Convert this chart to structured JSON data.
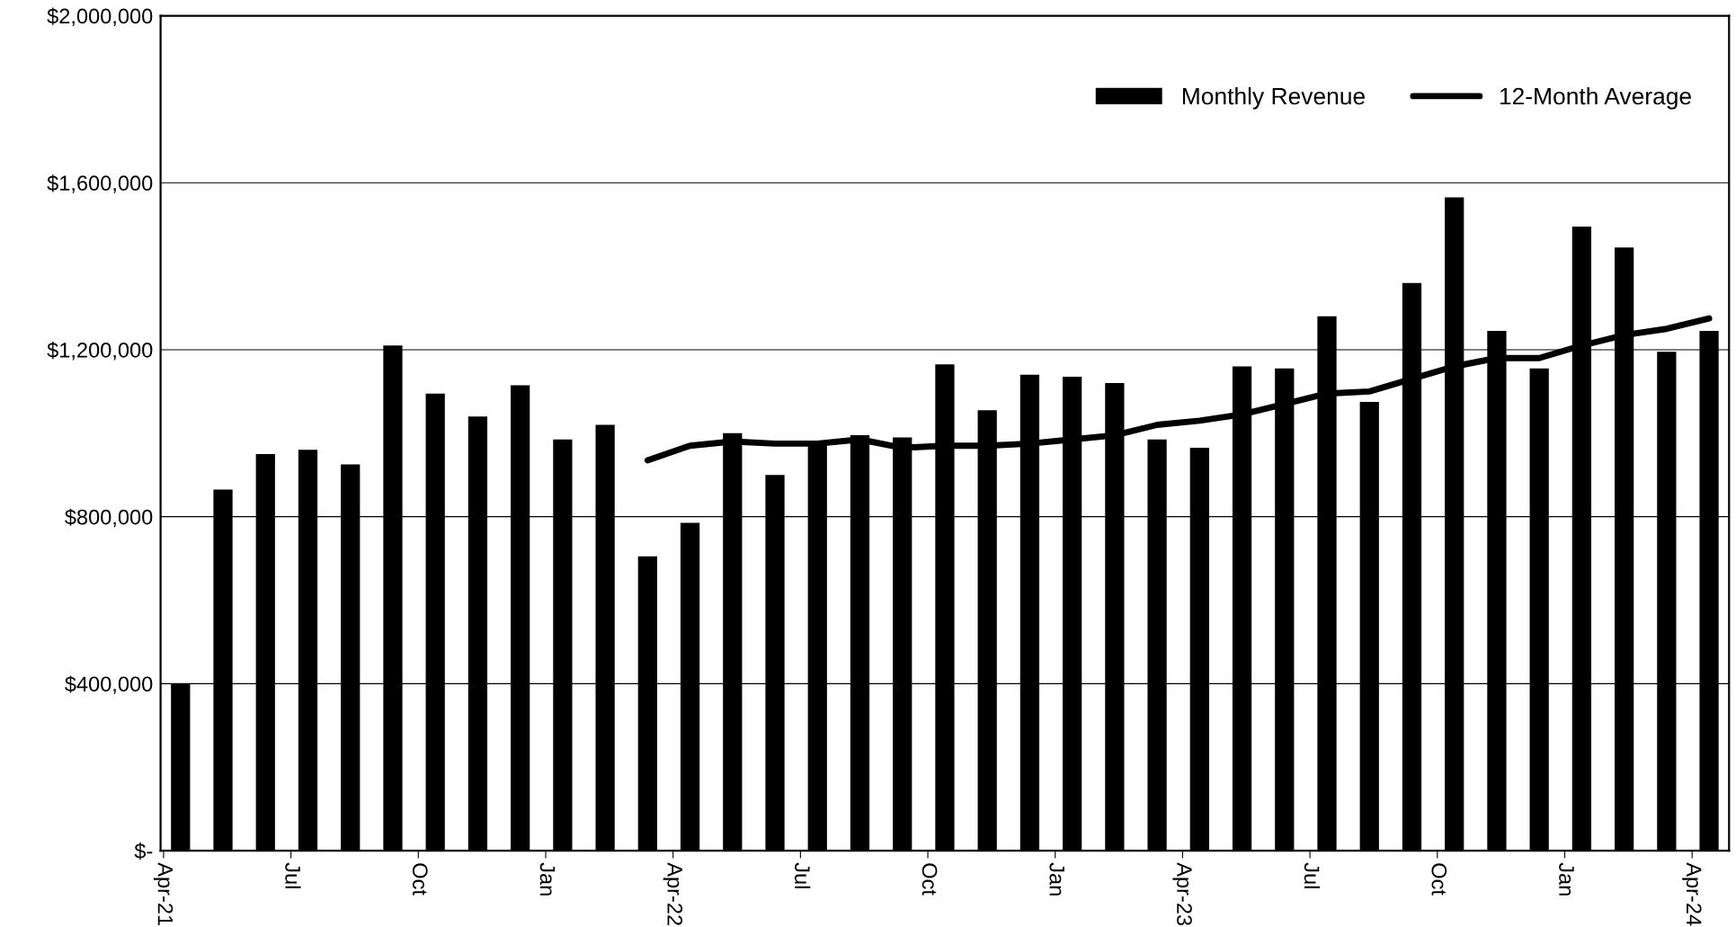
{
  "chart_data": {
    "type": "bar",
    "categories": [
      "Apr-21",
      null,
      null,
      "Jul",
      null,
      null,
      "Oct",
      null,
      null,
      "Jan",
      null,
      null,
      "Apr-22",
      null,
      null,
      "Jul",
      null,
      null,
      "Oct",
      null,
      null,
      "Jan",
      null,
      null,
      "Apr-23",
      null,
      null,
      "Jul",
      null,
      null,
      "Oct",
      null,
      null,
      "Jan",
      null,
      null,
      "Apr-24"
    ],
    "series": [
      {
        "name": "Monthly Revenue",
        "color": "#000000",
        "values": [
          400000,
          865000,
          950000,
          960000,
          925000,
          1210000,
          1095000,
          1040000,
          1115000,
          985000,
          1020000,
          705000,
          785000,
          1000000,
          900000,
          980000,
          995000,
          990000,
          1165000,
          1055000,
          1140000,
          1135000,
          1120000,
          985000,
          965000,
          1160000,
          1155000,
          1280000,
          1075000,
          1360000,
          1565000,
          1245000,
          1155000,
          1495000,
          1445000,
          1195000,
          1245000
        ]
      },
      {
        "name": "12-Month Average",
        "type": "line",
        "color": "#000000",
        "values": [
          null,
          null,
          null,
          null,
          null,
          null,
          null,
          null,
          null,
          null,
          null,
          935000,
          970000,
          980000,
          975000,
          975000,
          985000,
          965000,
          970000,
          970000,
          975000,
          985000,
          995000,
          1020000,
          1030000,
          1045000,
          1070000,
          1095000,
          1100000,
          1130000,
          1160000,
          1180000,
          1180000,
          1210000,
          1235000,
          1250000,
          1275000
        ]
      }
    ],
    "ylim": [
      0,
      2000000
    ],
    "yticks": [
      {
        "value": 0,
        "label": "$-"
      },
      {
        "value": 400000,
        "label": "$400,000"
      },
      {
        "value": 800000,
        "label": "$800,000"
      },
      {
        "value": 1200000,
        "label": "$1,200,000"
      },
      {
        "value": 1600000,
        "label": "$1,600,000"
      },
      {
        "value": 2000000,
        "label": "$2,000,000"
      }
    ],
    "grid": "y",
    "legend": "top right"
  }
}
